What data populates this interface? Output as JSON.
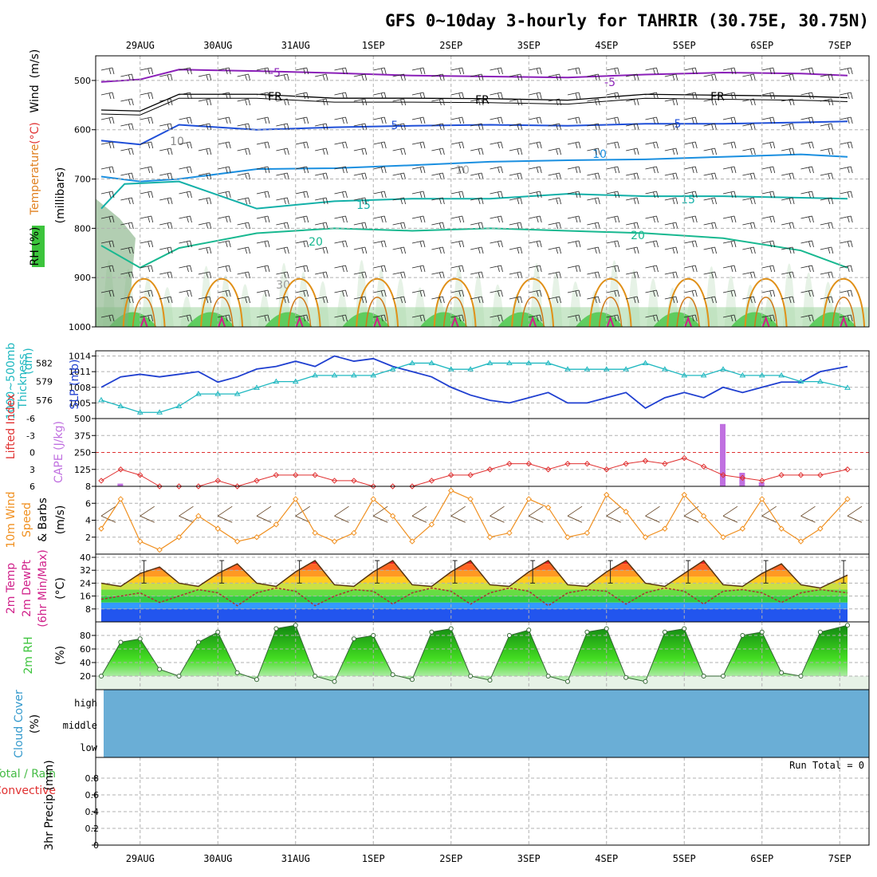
{
  "title": "GFS 0~10day 3-hourly for TAHRIR (30.75E, 30.75N)",
  "colors": {
    "rh_fill": "#3cc43c",
    "temp_purple": "#8a1fb8",
    "temp_black": "#000000",
    "temp_blue": "#1f4fd8",
    "temp_lightblue": "#1a8fe0",
    "temp_teal": "#12b0a8",
    "temp_green": "#18b890",
    "temp_orange": "#e09018",
    "temp_magenta": "#d0208a",
    "slp_line": "#1f3fd0",
    "thick_line": "#20b8c0",
    "lifted_index": "#e03030",
    "cape_bars": "#c070e0",
    "wind_speed": "#f09020",
    "cloud_fill": "#6aaed6"
  },
  "chart_data": [
    {
      "panel": "upper-air",
      "type": "contour",
      "y_title_parts": [
        "RH (%)",
        "Temperature",
        "(°C)",
        "Wind",
        "(m/s)"
      ],
      "y_axis_label": "(millibars)",
      "ylim": [
        1000,
        450
      ],
      "y_ticks": [
        500,
        600,
        700,
        800,
        900,
        1000
      ],
      "x_labels": [
        "29AUG",
        "30AUG",
        "31AUG",
        "1SEP",
        "2SEP",
        "3SEP",
        "4SEP",
        "5SEP",
        "6SEP",
        "7SEP"
      ],
      "contour_labels": [
        "-5",
        "FR",
        "5",
        "10",
        "15",
        "20",
        "10",
        "30"
      ],
      "isotherms": [
        {
          "label": "-5",
          "color": "purple",
          "points": [
            [
              0,
              503
            ],
            [
              0.5,
              498
            ],
            [
              1,
              478
            ],
            [
              2,
              481
            ],
            [
              3,
              485
            ],
            [
              4,
              490
            ],
            [
              5,
              492
            ],
            [
              6,
              494
            ],
            [
              7,
              488
            ],
            [
              8,
              484
            ],
            [
              9,
              486
            ],
            [
              9.6,
              490
            ]
          ]
        },
        {
          "label": "FR",
          "color": "black",
          "points": [
            [
              0,
              560
            ],
            [
              0.5,
              562
            ],
            [
              1,
              528
            ],
            [
              2,
              528
            ],
            [
              3,
              536
            ],
            [
              4,
              536
            ],
            [
              5,
              537
            ],
            [
              6,
              540
            ],
            [
              7,
              528
            ],
            [
              8,
              530
            ],
            [
              9,
              532
            ],
            [
              9.6,
              535
            ]
          ]
        },
        {
          "label": "5",
          "color": "blue",
          "points": [
            [
              0,
              622
            ],
            [
              0.5,
              630
            ],
            [
              1,
              590
            ],
            [
              2,
              600
            ],
            [
              3,
              595
            ],
            [
              4,
              592
            ],
            [
              5,
              590
            ],
            [
              6,
              592
            ],
            [
              7,
              588
            ],
            [
              8,
              588
            ],
            [
              9,
              585
            ],
            [
              9.6,
              583
            ]
          ]
        },
        {
          "label": "10",
          "color": "lightblue",
          "points": [
            [
              0,
              695
            ],
            [
              0.5,
              705
            ],
            [
              1,
              700
            ],
            [
              2,
              680
            ],
            [
              3,
              678
            ],
            [
              4,
              672
            ],
            [
              5,
              665
            ],
            [
              6,
              662
            ],
            [
              7,
              660
            ],
            [
              8,
              655
            ],
            [
              9,
              650
            ],
            [
              9.6,
              655
            ]
          ]
        },
        {
          "label": "15",
          "color": "teal",
          "points": [
            [
              0,
              760
            ],
            [
              0.3,
              710
            ],
            [
              1,
              705
            ],
            [
              2,
              760
            ],
            [
              3,
              745
            ],
            [
              4,
              740
            ],
            [
              5,
              740
            ],
            [
              6,
              730
            ],
            [
              7,
              735
            ],
            [
              8,
              735
            ],
            [
              9,
              738
            ],
            [
              9.6,
              740
            ]
          ]
        },
        {
          "label": "20",
          "color": "green",
          "points": [
            [
              0,
              835
            ],
            [
              0.5,
              880
            ],
            [
              1,
              840
            ],
            [
              2,
              810
            ],
            [
              3,
              800
            ],
            [
              4,
              805
            ],
            [
              5,
              800
            ],
            [
              6,
              805
            ],
            [
              7,
              810
            ],
            [
              8,
              820
            ],
            [
              9,
              845
            ],
            [
              9.6,
              880
            ]
          ]
        }
      ]
    },
    {
      "panel": "slp-thickness",
      "type": "line",
      "y_title_parts": [
        "SLP (mb)",
        "1000~500mb",
        "Thickness",
        "(dm)"
      ],
      "ylim": [
        1002,
        1015
      ],
      "y_ticks": [
        1005,
        1008,
        1011,
        1014
      ],
      "y2_ticks": [
        576,
        579,
        582
      ],
      "x": [
        0,
        0.25,
        0.5,
        0.75,
        1,
        1.25,
        1.5,
        1.75,
        2,
        2.25,
        2.5,
        2.75,
        3,
        3.25,
        3.5,
        3.75,
        4,
        4.25,
        4.5,
        4.75,
        5,
        5.25,
        5.5,
        5.75,
        6,
        6.25,
        6.5,
        6.75,
        7,
        7.25,
        7.5,
        7.75,
        8,
        8.25,
        8.5,
        8.75,
        9,
        9.25,
        9.6
      ],
      "series": [
        {
          "name": "SLP (mb)",
          "values": [
            1008,
            1010,
            1010.5,
            1010,
            1010.5,
            1011,
            1009,
            1010,
            1011.5,
            1012,
            1013,
            1012,
            1014,
            1013,
            1013.5,
            1012,
            1011,
            1010,
            1008,
            1006.5,
            1005.5,
            1005,
            1006,
            1007,
            1005,
            1005,
            1006,
            1007,
            1004,
            1006,
            1007,
            1006,
            1008,
            1007,
            1008,
            1009,
            1009,
            1011,
            1012
          ]
        },
        {
          "name": "1000~500mb Thickness (dm)",
          "values": [
            576,
            575,
            574,
            574,
            575,
            577,
            577,
            577,
            578,
            579,
            579,
            580,
            580,
            580,
            580,
            581,
            582,
            582,
            581,
            581,
            582,
            582,
            582,
            582,
            581,
            581,
            581,
            581,
            582,
            581,
            580,
            580,
            581,
            580,
            580,
            580,
            579,
            579,
            578
          ]
        }
      ]
    },
    {
      "panel": "lifted-index-cape",
      "type": "bar",
      "y_title_parts": [
        "Lifted Index",
        "CAPE (J/kg)"
      ],
      "ylim": [
        6,
        -6
      ],
      "y_ticks": [
        -6,
        -3,
        0,
        3,
        6
      ],
      "y2_ticks": [
        125,
        250,
        375,
        500
      ],
      "x": [
        0,
        0.25,
        0.5,
        0.75,
        1,
        1.25,
        1.5,
        1.75,
        2,
        2.25,
        2.5,
        2.75,
        3,
        3.25,
        3.5,
        3.75,
        4,
        4.25,
        4.5,
        4.75,
        5,
        5.25,
        5.5,
        5.75,
        6,
        6.25,
        6.5,
        6.75,
        7,
        7.25,
        7.5,
        7.75,
        8,
        8.25,
        8.5,
        8.75,
        9,
        9.25,
        9.6
      ],
      "series": [
        {
          "name": "Lifted Index",
          "values": [
            5,
            3,
            4,
            6,
            6,
            6,
            5,
            6,
            5,
            4,
            4,
            4,
            5,
            5,
            6,
            6,
            6,
            5,
            4,
            4,
            3,
            2,
            2,
            3,
            2,
            2,
            3,
            2,
            1.5,
            2,
            1,
            2.5,
            4,
            4.5,
            5,
            4,
            4,
            4,
            3
          ]
        },
        {
          "name": "CAPE (J/kg)",
          "values": [
            0,
            20,
            0,
            0,
            0,
            0,
            0,
            0,
            0,
            0,
            0,
            0,
            0,
            0,
            0,
            0,
            0,
            0,
            0,
            0,
            0,
            0,
            0,
            0,
            0,
            0,
            0,
            0,
            0,
            0,
            0,
            0,
            460,
            100,
            30,
            0,
            0,
            0,
            0
          ]
        }
      ]
    },
    {
      "panel": "10m-wind",
      "type": "line",
      "y_title_parts": [
        "10m Wind",
        "Speed",
        "& Barbs",
        "(m/s)"
      ],
      "ylim": [
        0,
        8
      ],
      "y_ticks": [
        2,
        4,
        6,
        8
      ],
      "x": [
        0,
        0.25,
        0.5,
        0.75,
        1,
        1.25,
        1.5,
        1.75,
        2,
        2.25,
        2.5,
        2.75,
        3,
        3.25,
        3.5,
        3.75,
        4,
        4.25,
        4.5,
        4.75,
        5,
        5.25,
        5.5,
        5.75,
        6,
        6.25,
        6.5,
        6.75,
        7,
        7.25,
        7.5,
        7.75,
        8,
        8.25,
        8.5,
        8.75,
        9,
        9.25,
        9.6
      ],
      "series": [
        {
          "name": "Speed",
          "values": [
            3,
            6.5,
            1.5,
            0.5,
            2,
            4.5,
            3,
            1.5,
            2,
            3.5,
            6.5,
            2.5,
            1.5,
            2.5,
            6.5,
            4.5,
            1.5,
            3.5,
            7.5,
            6.5,
            2,
            2.5,
            6.5,
            5.5,
            2,
            2.5,
            7,
            5,
            2,
            3,
            7,
            4.5,
            2,
            3,
            6.5,
            3,
            1.5,
            3,
            6.5
          ]
        }
      ]
    },
    {
      "panel": "2m-temp",
      "type": "area",
      "y_title_parts": [
        "2m Temp",
        "2m DewPt",
        "(6hr Min/Max)",
        "(°C)"
      ],
      "ylim": [
        0,
        42
      ],
      "y_ticks": [
        8,
        16,
        24,
        32,
        40
      ],
      "x": [
        0,
        0.25,
        0.5,
        0.75,
        1,
        1.25,
        1.5,
        1.75,
        2,
        2.25,
        2.5,
        2.75,
        3,
        3.25,
        3.5,
        3.75,
        4,
        4.25,
        4.5,
        4.75,
        5,
        5.25,
        5.5,
        5.75,
        6,
        6.25,
        6.5,
        6.75,
        7,
        7.25,
        7.5,
        7.75,
        8,
        8.25,
        8.5,
        8.75,
        9,
        9.25,
        9.6
      ],
      "series": [
        {
          "name": "2m Temp",
          "values": [
            24,
            22,
            30,
            34,
            24,
            22,
            30,
            36,
            24,
            22,
            31,
            38,
            23,
            22,
            31,
            38,
            23,
            22,
            31,
            38,
            23,
            22,
            31,
            38,
            23,
            22,
            31,
            38,
            24,
            22,
            30,
            38,
            23,
            22,
            30,
            36,
            23,
            21,
            29
          ]
        },
        {
          "name": "2m DewPt",
          "values": [
            14,
            16,
            18,
            12,
            16,
            20,
            18,
            10,
            18,
            21,
            19,
            10,
            16,
            20,
            19,
            11,
            18,
            21,
            19,
            11,
            18,
            21,
            19,
            10,
            18,
            20,
            19,
            11,
            18,
            21,
            19,
            11,
            19,
            20,
            18,
            12,
            18,
            20,
            18
          ]
        }
      ]
    },
    {
      "panel": "2m-rh",
      "type": "area",
      "y_title_parts": [
        "2m RH",
        "(%)"
      ],
      "ylim": [
        0,
        100
      ],
      "y_ticks": [
        20,
        40,
        60,
        80
      ],
      "x": [
        0,
        0.25,
        0.5,
        0.75,
        1,
        1.25,
        1.5,
        1.75,
        2,
        2.25,
        2.5,
        2.75,
        3,
        3.25,
        3.5,
        3.75,
        4,
        4.25,
        4.5,
        4.75,
        5,
        5.25,
        5.5,
        5.75,
        6,
        6.25,
        6.5,
        6.75,
        7,
        7.25,
        7.5,
        7.75,
        8,
        8.25,
        8.5,
        8.75,
        9,
        9.25,
        9.6
      ],
      "series": [
        {
          "name": "2m RH",
          "values": [
            20,
            70,
            75,
            30,
            20,
            70,
            85,
            25,
            15,
            90,
            95,
            20,
            12,
            75,
            80,
            22,
            15,
            85,
            90,
            20,
            14,
            80,
            88,
            20,
            12,
            85,
            90,
            18,
            12,
            85,
            90,
            20,
            20,
            80,
            85,
            25,
            20,
            85,
            95
          ]
        }
      ]
    },
    {
      "panel": "cloud-cover",
      "type": "heatmap",
      "y_title_parts": [
        "Cloud Cover",
        "(%)"
      ],
      "y_categories": [
        "high",
        "middle",
        "low"
      ]
    },
    {
      "panel": "precip",
      "type": "bar",
      "y_title_parts": [
        "Total / Rain",
        "Convective",
        "3hr Precip (mm)"
      ],
      "ylim": [
        0,
        1
      ],
      "y_ticks": [
        0,
        0.2,
        0.4,
        0.6,
        0.8
      ],
      "annotation": "Run Total = 0"
    }
  ]
}
